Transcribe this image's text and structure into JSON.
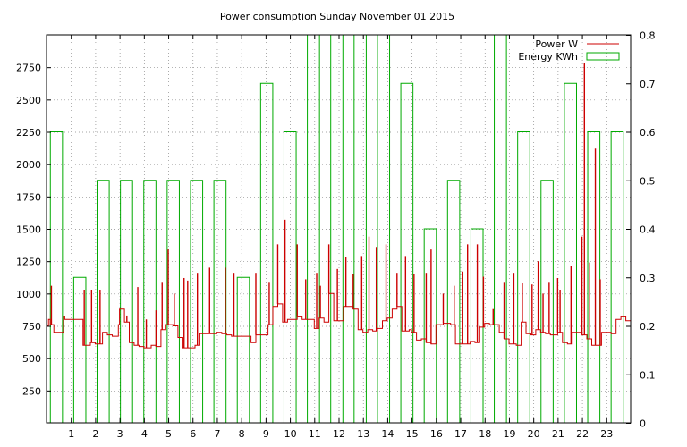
{
  "chart_data": {
    "type": "bar+line",
    "title": "Power consumption Sunday November 01 2015",
    "xlabel": "",
    "ylabel": "",
    "x_ticks": [
      "1",
      "2",
      "3",
      "4",
      "5",
      "6",
      "7",
      "8",
      "9",
      "10",
      "11",
      "12",
      "13",
      "14",
      "15",
      "16",
      "17",
      "18",
      "19",
      "20",
      "21",
      "22",
      "23"
    ],
    "xlim": [
      0,
      24
    ],
    "y_left": {
      "ticks": [
        "250",
        "500",
        "750",
        "1000",
        "1250",
        "1500",
        "1750",
        "2000",
        "2250",
        "2500",
        "2750"
      ],
      "ylim": [
        0,
        3000
      ]
    },
    "y_right": {
      "ticks": [
        "0",
        "0.1",
        "0.2",
        "0.3",
        "0.4",
        "0.5",
        "0.6",
        "0.7",
        "0.8"
      ],
      "ylim": [
        0,
        0.8
      ]
    },
    "grid": true,
    "legend_position": "top-right",
    "series": [
      {
        "name": "Power W",
        "axis": "left",
        "color": "#cc0000",
        "style": "line",
        "points": [
          [
            0.0,
            750
          ],
          [
            0.08,
            800
          ],
          [
            0.15,
            760
          ],
          [
            0.3,
            700
          ],
          [
            0.5,
            700
          ],
          [
            0.7,
            820
          ],
          [
            0.75,
            800
          ],
          [
            1.0,
            800
          ],
          [
            1.3,
            800
          ],
          [
            1.5,
            600
          ],
          [
            1.8,
            620
          ],
          [
            2.0,
            610
          ],
          [
            2.3,
            700
          ],
          [
            2.5,
            680
          ],
          [
            2.7,
            670
          ],
          [
            2.95,
            760
          ],
          [
            3.0,
            880
          ],
          [
            3.2,
            780
          ],
          [
            3.4,
            620
          ],
          [
            3.6,
            600
          ],
          [
            3.8,
            590
          ],
          [
            4.0,
            580
          ],
          [
            4.3,
            600
          ],
          [
            4.5,
            590
          ],
          [
            4.7,
            720
          ],
          [
            4.9,
            760
          ],
          [
            5.0,
            760
          ],
          [
            5.2,
            750
          ],
          [
            5.4,
            660
          ],
          [
            5.6,
            580
          ],
          [
            5.9,
            580
          ],
          [
            6.1,
            600
          ],
          [
            6.3,
            690
          ],
          [
            6.5,
            690
          ],
          [
            6.8,
            690
          ],
          [
            7.0,
            700
          ],
          [
            7.2,
            690
          ],
          [
            7.4,
            680
          ],
          [
            7.6,
            670
          ],
          [
            8.0,
            670
          ],
          [
            8.2,
            670
          ],
          [
            8.4,
            620
          ],
          [
            8.6,
            680
          ],
          [
            8.9,
            680
          ],
          [
            9.1,
            760
          ],
          [
            9.3,
            900
          ],
          [
            9.5,
            920
          ],
          [
            9.7,
            780
          ],
          [
            9.9,
            800
          ],
          [
            10.1,
            800
          ],
          [
            10.3,
            820
          ],
          [
            10.5,
            800
          ],
          [
            10.8,
            800
          ],
          [
            11.0,
            730
          ],
          [
            11.2,
            810
          ],
          [
            11.4,
            780
          ],
          [
            11.6,
            1000
          ],
          [
            11.8,
            790
          ],
          [
            12.0,
            790
          ],
          [
            12.2,
            900
          ],
          [
            12.4,
            900
          ],
          [
            12.6,
            880
          ],
          [
            12.8,
            720
          ],
          [
            13.0,
            700
          ],
          [
            13.2,
            720
          ],
          [
            13.4,
            710
          ],
          [
            13.6,
            730
          ],
          [
            13.8,
            790
          ],
          [
            14.0,
            810
          ],
          [
            14.2,
            880
          ],
          [
            14.4,
            900
          ],
          [
            14.6,
            710
          ],
          [
            14.9,
            720
          ],
          [
            15.0,
            700
          ],
          [
            15.2,
            640
          ],
          [
            15.4,
            650
          ],
          [
            15.6,
            620
          ],
          [
            15.8,
            610
          ],
          [
            16.0,
            760
          ],
          [
            16.3,
            770
          ],
          [
            16.6,
            760
          ],
          [
            16.8,
            610
          ],
          [
            17.1,
            610
          ],
          [
            17.4,
            630
          ],
          [
            17.6,
            620
          ],
          [
            17.8,
            740
          ],
          [
            18.0,
            770
          ],
          [
            18.2,
            760
          ],
          [
            18.4,
            760
          ],
          [
            18.6,
            700
          ],
          [
            18.8,
            650
          ],
          [
            19.0,
            610
          ],
          [
            19.3,
            600
          ],
          [
            19.5,
            780
          ],
          [
            19.7,
            690
          ],
          [
            19.9,
            680
          ],
          [
            20.1,
            720
          ],
          [
            20.3,
            700
          ],
          [
            20.5,
            690
          ],
          [
            20.7,
            680
          ],
          [
            21.0,
            700
          ],
          [
            21.2,
            620
          ],
          [
            21.4,
            610
          ],
          [
            21.6,
            700
          ],
          [
            21.8,
            700
          ],
          [
            22.0,
            680
          ],
          [
            22.2,
            650
          ],
          [
            22.4,
            600
          ],
          [
            22.6,
            600
          ],
          [
            22.8,
            700
          ],
          [
            23.0,
            700
          ],
          [
            23.2,
            690
          ],
          [
            23.4,
            800
          ],
          [
            23.6,
            820
          ],
          [
            23.8,
            790
          ],
          [
            24.0,
            700
          ]
        ],
        "spikes": [
          [
            0.2,
            1060
          ],
          [
            1.55,
            1030
          ],
          [
            1.85,
            1030
          ],
          [
            2.2,
            1030
          ],
          [
            3.3,
            830
          ],
          [
            3.75,
            1050
          ],
          [
            4.1,
            800
          ],
          [
            4.5,
            870
          ],
          [
            4.75,
            1090
          ],
          [
            5.0,
            1340
          ],
          [
            5.25,
            1000
          ],
          [
            5.65,
            1120
          ],
          [
            5.8,
            1100
          ],
          [
            6.2,
            1160
          ],
          [
            6.7,
            1200
          ],
          [
            7.35,
            1200
          ],
          [
            7.7,
            1160
          ],
          [
            8.6,
            1160
          ],
          [
            9.15,
            1090
          ],
          [
            9.5,
            1380
          ],
          [
            9.8,
            1570
          ],
          [
            10.3,
            1380
          ],
          [
            10.65,
            1110
          ],
          [
            11.1,
            1160
          ],
          [
            11.25,
            1060
          ],
          [
            11.6,
            1380
          ],
          [
            11.95,
            1190
          ],
          [
            12.3,
            1280
          ],
          [
            12.6,
            1150
          ],
          [
            12.95,
            1290
          ],
          [
            13.25,
            1440
          ],
          [
            13.55,
            1360
          ],
          [
            13.95,
            1380
          ],
          [
            14.4,
            1160
          ],
          [
            14.75,
            1290
          ],
          [
            15.1,
            1150
          ],
          [
            15.6,
            1160
          ],
          [
            15.8,
            1340
          ],
          [
            16.3,
            1000
          ],
          [
            16.75,
            1060
          ],
          [
            17.1,
            1170
          ],
          [
            17.3,
            1380
          ],
          [
            17.7,
            1380
          ],
          [
            17.95,
            1130
          ],
          [
            18.35,
            880
          ],
          [
            18.8,
            1090
          ],
          [
            19.2,
            1160
          ],
          [
            19.55,
            1080
          ],
          [
            19.95,
            1070
          ],
          [
            20.2,
            1250
          ],
          [
            20.4,
            1000
          ],
          [
            20.65,
            1090
          ],
          [
            21.0,
            1120
          ],
          [
            21.1,
            1030
          ],
          [
            21.55,
            1210
          ],
          [
            22.0,
            1440
          ],
          [
            22.1,
            2780
          ],
          [
            22.3,
            1240
          ],
          [
            22.55,
            2120
          ],
          [
            22.75,
            1110
          ]
        ]
      },
      {
        "name": "Energy KWh",
        "axis": "right",
        "color": "#00aa00",
        "style": "bars",
        "values": [
          0.6,
          0.3,
          0.5,
          0.5,
          0.5,
          0.5,
          0.5,
          0.5,
          0.3,
          0.7,
          0.6,
          0.8,
          0.8,
          0.8,
          0.8,
          0.7,
          0.4,
          0.5,
          0.4,
          0.8,
          0.6,
          0.5,
          0.7,
          0.6,
          0.6
        ]
      }
    ]
  }
}
